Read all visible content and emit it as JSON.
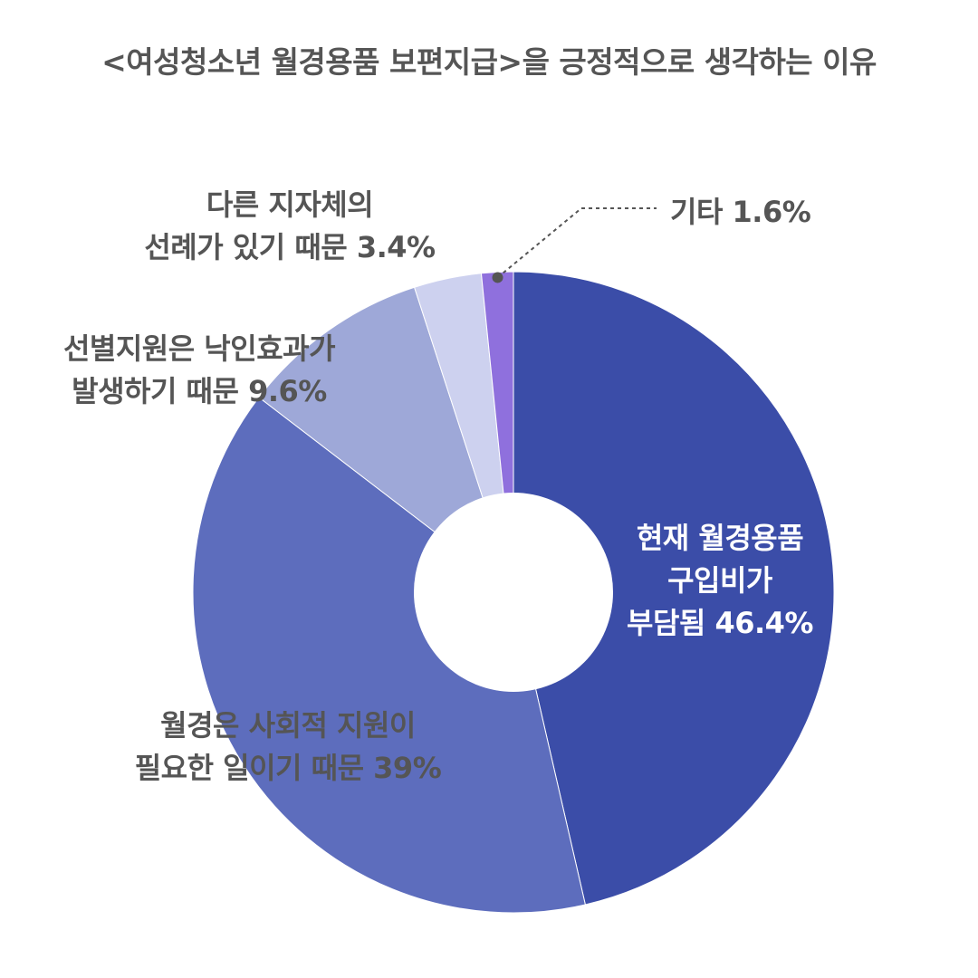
{
  "chart_data": {
    "type": "pie",
    "title": "<여성청소년 월경용품 보편지급>을 긍정적으로 생각하는 이유",
    "unit": "%",
    "slices": [
      {
        "label": "현재 월경용품 구입비가 부담됨",
        "value": 46.4,
        "label_lines": [
          "현재 월경용품",
          "구입비가",
          "부담됨 46.4%"
        ],
        "color": "#3B4DA8",
        "label_color": "#FFFFFF"
      },
      {
        "label": "월경은 사회적 지원이 필요한 일이기 때문",
        "value": 39,
        "label_lines": [
          "월경은 사회적 지원이",
          "필요한 일이기 때문 39%"
        ],
        "color": "#5D6DBD",
        "label_color": "#555555"
      },
      {
        "label": "선별지원은 낙인효과가 발생하기 때문",
        "value": 9.6,
        "label_lines": [
          "선별지원은 낙인효과가",
          "발생하기 때문 9.6%"
        ],
        "color": "#9EA8D8",
        "label_color": "#555555"
      },
      {
        "label": "다른 지자체의 선례가 있기 때문",
        "value": 3.4,
        "label_lines": [
          "다른 지자체의",
          "선례가 있기 때문 3.4%"
        ],
        "color": "#CDD1EF",
        "label_color": "#555555"
      },
      {
        "label": "기타",
        "value": 1.6,
        "label_lines": [
          "기타 1.6%"
        ],
        "color": "#8F70DD",
        "label_color": "#555555"
      }
    ]
  }
}
